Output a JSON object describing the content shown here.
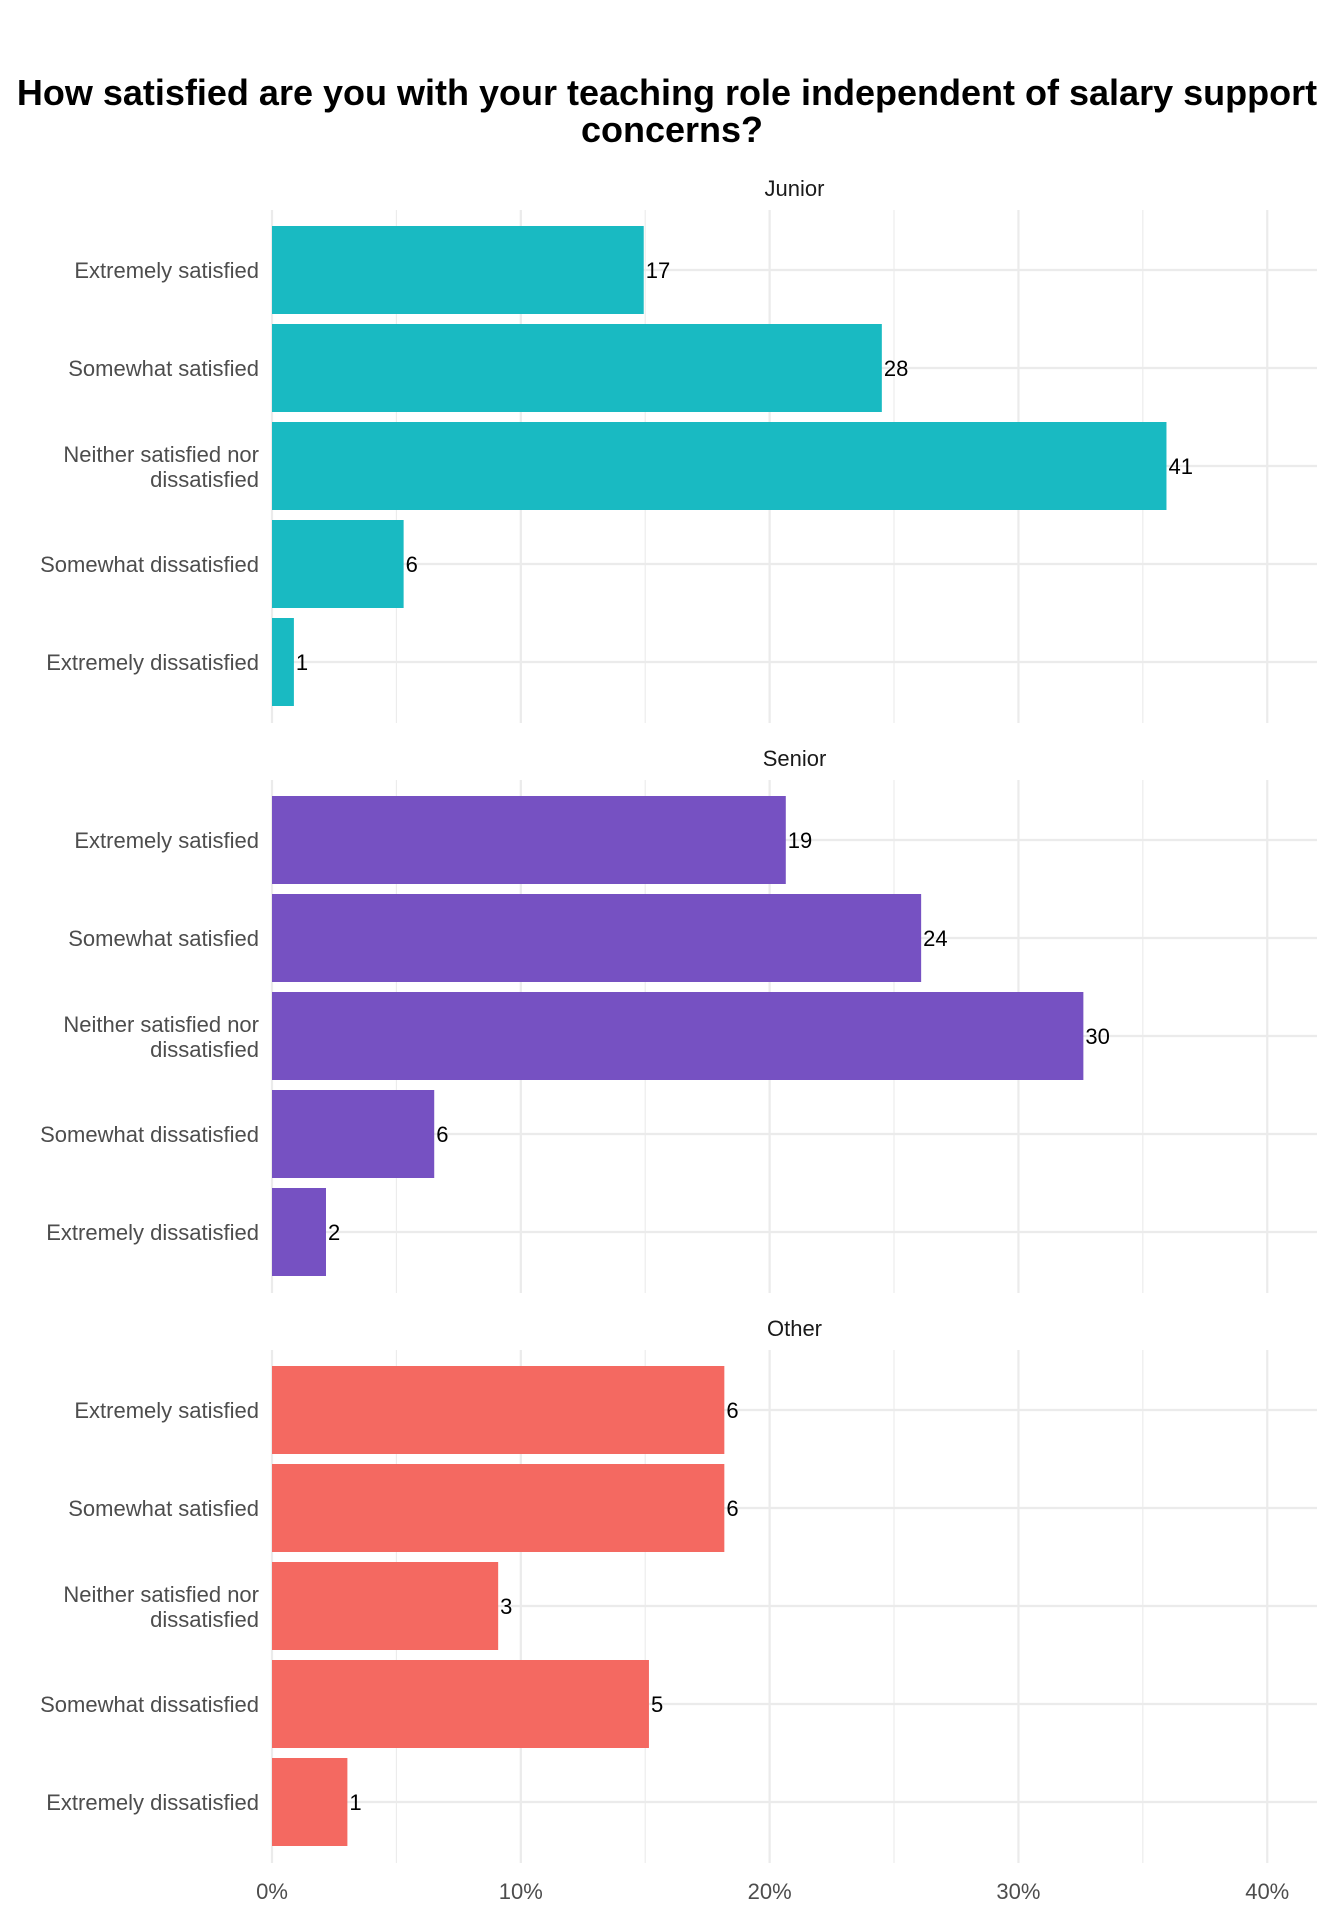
{
  "chart_data": {
    "type": "bar",
    "orientation": "horizontal",
    "title": "How satisfied are you with your teaching role independent of salary support concerns?",
    "title_lines": [
      "How satisfied are you with your teaching role independent of salary support",
      "concerns?"
    ],
    "categories": [
      "Extremely satisfied",
      "Somewhat satisfied",
      "Neither satisfied nor dissatisfied",
      "Somewhat dissatisfied",
      "Extremely dissatisfied"
    ],
    "xlim": [
      0,
      0.42
    ],
    "x_ticks": [
      0,
      0.1,
      0.2,
      0.3,
      0.4
    ],
    "x_tick_labels": [
      "0%",
      "10%",
      "20%",
      "30%",
      "40%"
    ],
    "grid": true,
    "legend": "none",
    "facets": [
      {
        "name": "Junior",
        "color": "#19BAC2",
        "counts": [
          17,
          28,
          41,
          6,
          1
        ],
        "percent_values": [
          0.1494,
          0.2451,
          0.3595,
          0.0529,
          0.0088
        ]
      },
      {
        "name": "Senior",
        "color": "#7651C2",
        "counts": [
          19,
          24,
          30,
          6,
          2
        ],
        "percent_values": [
          0.2065,
          0.2609,
          0.3261,
          0.0652,
          0.0217
        ]
      },
      {
        "name": "Other",
        "color": "#F46961",
        "counts": [
          6,
          6,
          3,
          5,
          1
        ],
        "percent_values": [
          0.1818,
          0.1818,
          0.0909,
          0.1515,
          0.0303
        ]
      }
    ]
  }
}
